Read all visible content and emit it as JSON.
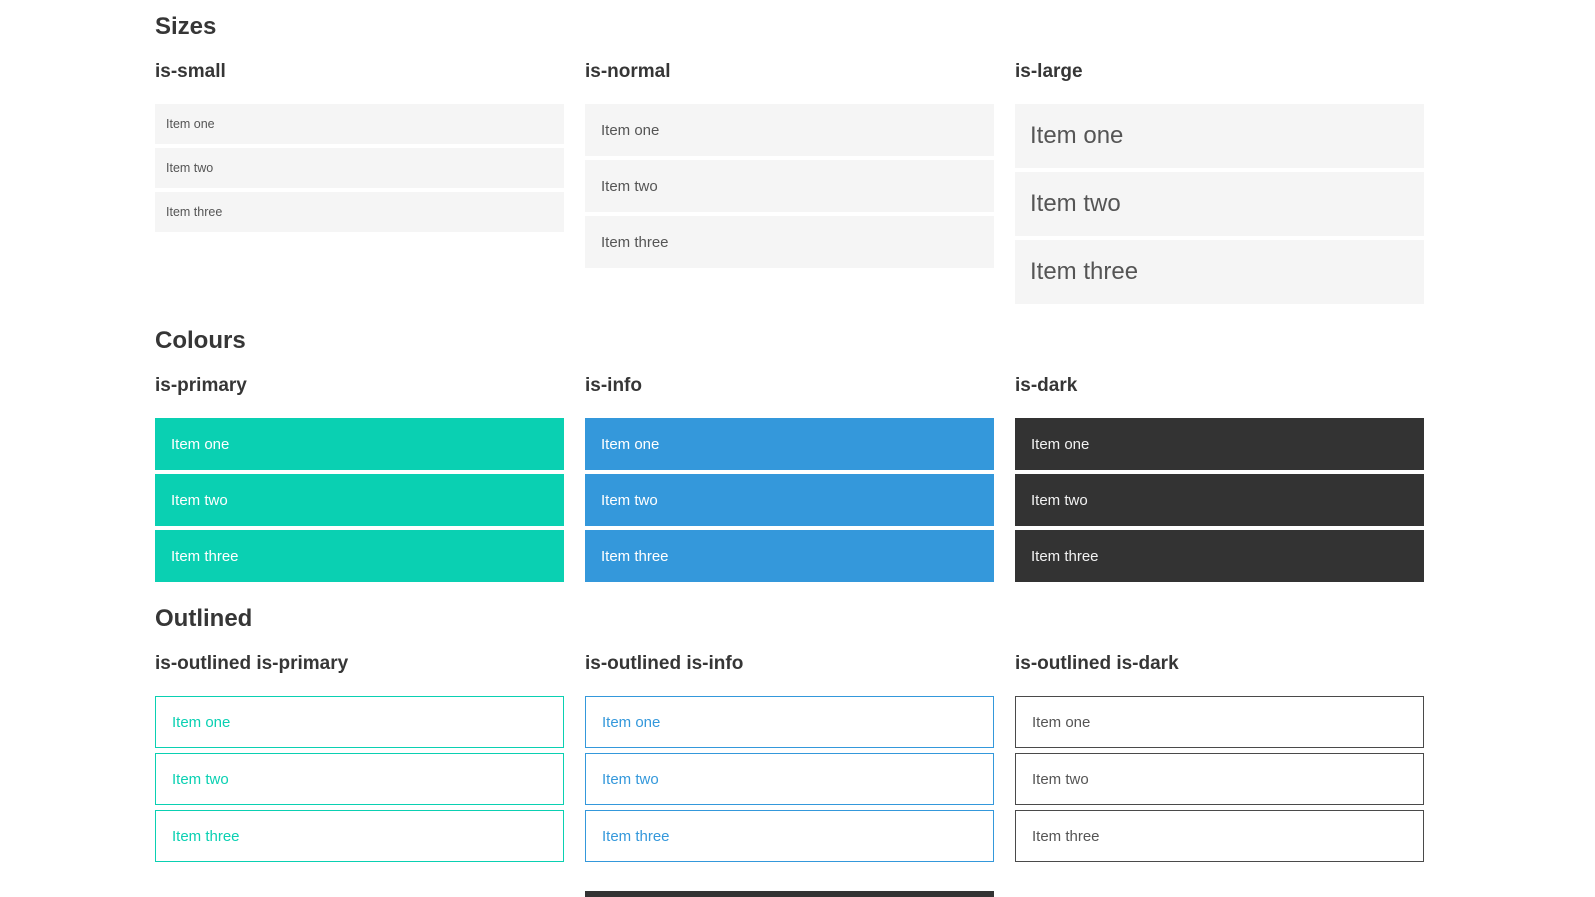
{
  "colors": {
    "primary": "#0ad0b2",
    "info": "#3498db",
    "dark": "#333333",
    "item_bg": "#f5f5f5",
    "item_text": "#555555",
    "dark_item_text": "#f2f2f2",
    "white_text": "#ffffff",
    "heading_text": "#363636",
    "outline_dark_border": "#4a4a4a",
    "partial_bar": "#333333"
  },
  "sections": [
    {
      "title": "Sizes",
      "columns": [
        {
          "label": "is-small",
          "items": [
            "Item one",
            "Item two",
            "Item three"
          ]
        },
        {
          "label": "is-normal",
          "items": [
            "Item one",
            "Item two",
            "Item three"
          ]
        },
        {
          "label": "is-large",
          "items": [
            "Item one",
            "Item two",
            "Item three"
          ]
        }
      ]
    },
    {
      "title": "Colours",
      "columns": [
        {
          "label": "is-primary",
          "items": [
            "Item one",
            "Item two",
            "Item three"
          ]
        },
        {
          "label": "is-info",
          "items": [
            "Item one",
            "Item two",
            "Item three"
          ]
        },
        {
          "label": "is-dark",
          "items": [
            "Item one",
            "Item two",
            "Item three"
          ]
        }
      ]
    },
    {
      "title": "Outlined",
      "columns": [
        {
          "label": "is-outlined is-primary",
          "items": [
            "Item one",
            "Item two",
            "Item three"
          ]
        },
        {
          "label": "is-outlined is-info",
          "items": [
            "Item one",
            "Item two",
            "Item three"
          ]
        },
        {
          "label": "is-outlined is-dark",
          "items": [
            "Item one",
            "Item two",
            "Item three"
          ]
        }
      ]
    }
  ]
}
